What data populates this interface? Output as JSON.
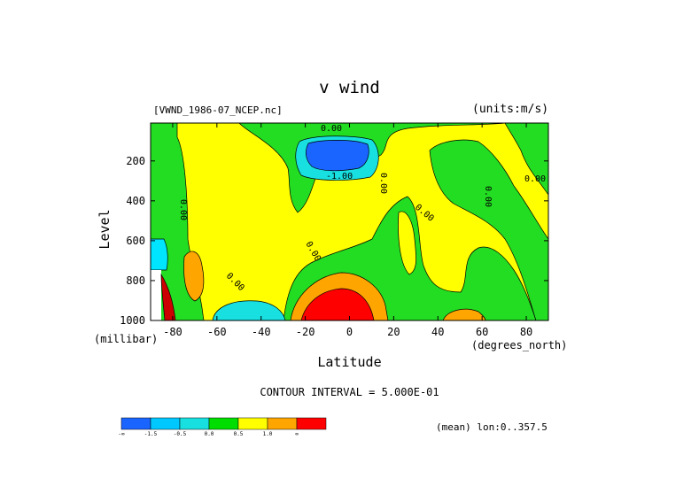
{
  "chart_data": {
    "type": "heatmap",
    "title": "v wind",
    "file_label": "[VWND_1986-07_NCEP.nc]",
    "units_label": "(units:m/s)",
    "xlabel": "Latitude",
    "x_unit_label": "(degrees_north)",
    "ylabel": "Level",
    "y_unit_label": "(millibar)",
    "xlim": [
      -90,
      90
    ],
    "ylim": [
      1000,
      10
    ],
    "x_ticks": [
      "-80",
      "-60",
      "-40",
      "-20",
      "0",
      "20",
      "40",
      "60",
      "80"
    ],
    "x_tick_values": [
      -80,
      -60,
      -40,
      -20,
      0,
      20,
      40,
      60,
      80
    ],
    "y_ticks": [
      "200",
      "400",
      "600",
      "800",
      "1000"
    ],
    "y_tick_values": [
      200,
      400,
      600,
      800,
      1000
    ],
    "contour_interval": "CONTOUR INTERVAL = 5.000E-01",
    "mean_label": "(mean) lon:0..357.5",
    "contour_labels": [
      "0.00",
      "0.00",
      "0.00",
      "0.00",
      "0.00",
      "0.00",
      "0.00",
      "0.00",
      "-1.00"
    ],
    "colorbar": {
      "colors": [
        "#1a64ff",
        "#00c8ff",
        "#18e0e0",
        "#00dd00",
        "#ffff00",
        "#ffa500",
        "#ff0000"
      ],
      "labels": [
        "-∞",
        "-1.5",
        "-0.5",
        "0.0",
        "0.5",
        "1.0",
        "∞"
      ]
    },
    "colors": {
      "green": "#22dd22",
      "yellow": "#ffff00",
      "orange": "#ffa500",
      "red": "#ff0000",
      "cyan": "#00e5ff",
      "blue": "#1a64ff",
      "deep_red": "#cc0000"
    }
  }
}
